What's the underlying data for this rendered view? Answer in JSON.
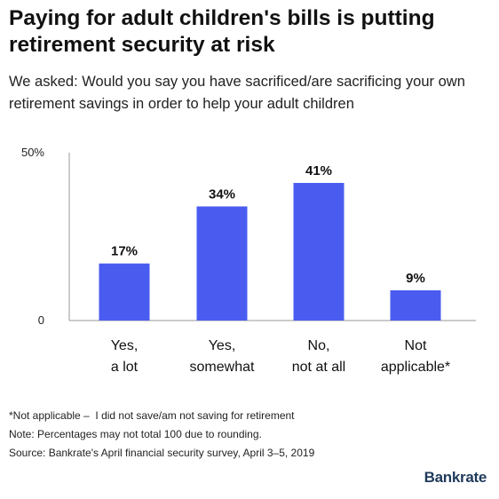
{
  "chart_data": {
    "type": "bar",
    "title": "Paying for adult children's bills is putting retirement security at risk",
    "subtitle": "We asked: Would you say you have sacrificed/are sacrificing your own retirement savings in order to help your adult children",
    "categories": [
      [
        "Yes,",
        "a lot"
      ],
      [
        "Yes,",
        "somewhat"
      ],
      [
        "No,",
        "not at all"
      ],
      [
        "Not",
        "applicable*"
      ]
    ],
    "values": [
      17,
      34,
      41,
      9
    ],
    "value_labels": [
      "17%",
      "34%",
      "41%",
      "9%"
    ],
    "ylim": [
      0,
      50
    ],
    "y_ticks": [
      {
        "value": 0,
        "label": "0"
      },
      {
        "value": 50,
        "label": "50%"
      }
    ],
    "bar_color": "#4a5cf0",
    "grid": false,
    "legend": "none"
  },
  "footnotes": [
    "*Not applicable –  I did not save/am not saving for retirement",
    "Note: Percentages may not total 100 due to rounding.",
    "Source: Bankrate's April financial security survey, April 3–5, 2019"
  ],
  "brand": "Bankrate"
}
